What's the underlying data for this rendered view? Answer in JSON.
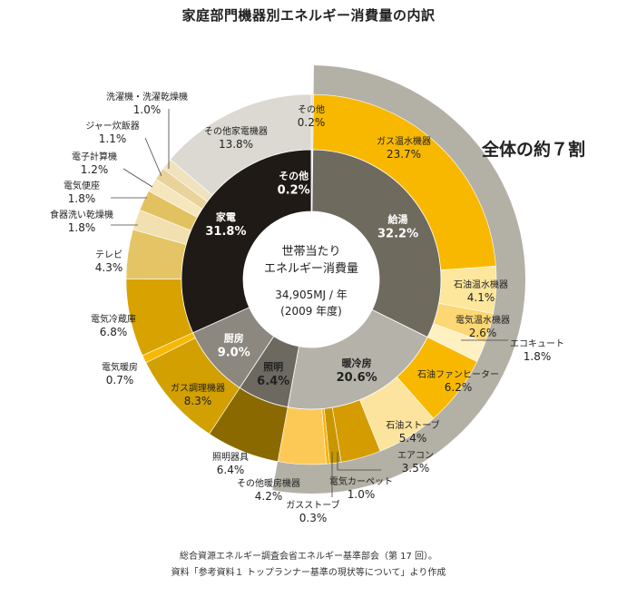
{
  "title": "家庭部門機器別エネルギー消費量の内訳",
  "center": {
    "line1": "世帯当たり",
    "line2": "エネルギー消費量",
    "line3": "34,905MJ / 年",
    "line4": "(2009 年度)"
  },
  "callout": "全体の約７割",
  "source": {
    "line1": "総合資源エネルギー調査会省エネルギー基準部会（第 17 回）。",
    "line2": "資料「参考資料１ トップランナー基準の現状等について」より作成"
  },
  "colors": {
    "kyuto": "#6f6a5e",
    "kaden": "#1f1a15",
    "danreibo": "#b5b2a9",
    "shomei": "#6d6860",
    "chubo": "#8c8880",
    "other": "#dbd9d2",
    "band": "#b3b0a5",
    "gold": "#f8b800"
  },
  "chart_data": {
    "type": "pie",
    "total_label": "34,905MJ / 年",
    "inner": [
      {
        "name": "その他",
        "value": 0.2,
        "label": "その他",
        "pct": "0.2%"
      },
      {
        "name": "給湯",
        "value": 32.2,
        "label": "給湯",
        "pct": "32.2%"
      },
      {
        "name": "暖冷房",
        "value": 20.6,
        "label": "暖冷房",
        "pct": "20.6%"
      },
      {
        "name": "照明",
        "value": 6.4,
        "label": "照明",
        "pct": "6.4%"
      },
      {
        "name": "厨房",
        "value": 9.0,
        "label": "厨房",
        "pct": "9.0%"
      },
      {
        "name": "家電",
        "value": 31.8,
        "label": "家電",
        "pct": "31.8%"
      }
    ],
    "outer": [
      {
        "name": "その他",
        "value": 0.2,
        "label": "その他",
        "pct": "0.2%"
      },
      {
        "name": "ガス温水機器",
        "value": 23.7,
        "label": "ガス温水機器",
        "pct": "23.7%"
      },
      {
        "name": "石油温水機器",
        "value": 4.1,
        "label": "石油温水機器",
        "pct": "4.1%"
      },
      {
        "name": "電気温水機器",
        "value": 2.6,
        "label": "電気温水機器",
        "pct": "2.6%"
      },
      {
        "name": "エコキュート",
        "value": 1.8,
        "label": "エコキュート",
        "pct": "1.8%"
      },
      {
        "name": "石油ファンヒーター",
        "value": 6.2,
        "label": "石油ファンヒーター",
        "pct": "6.2%"
      },
      {
        "name": "石油ストーブ",
        "value": 5.4,
        "label": "石油ストーブ",
        "pct": "5.4%"
      },
      {
        "name": "エアコン",
        "value": 3.5,
        "label": "エアコン",
        "pct": "3.5%"
      },
      {
        "name": "電気カーペット",
        "value": 1.0,
        "label": "電気カーペット",
        "pct": "1.0%"
      },
      {
        "name": "ガスストーブ",
        "value": 0.3,
        "label": "ガスストーブ",
        "pct": "0.3%"
      },
      {
        "name": "その他暖房機器",
        "value": 4.2,
        "label": "その他暖房機器",
        "pct": "4.2%"
      },
      {
        "name": "照明器具",
        "value": 6.4,
        "label": "照明器具",
        "pct": "6.4%"
      },
      {
        "name": "ガス調理機器",
        "value": 8.3,
        "label": "ガス調理機器",
        "pct": "8.3%"
      },
      {
        "name": "電気暖房",
        "value": 0.7,
        "label": "電気暖房",
        "pct": "0.7%"
      },
      {
        "name": "電気冷蔵庫",
        "value": 6.8,
        "label": "電気冷蔵庫",
        "pct": "6.8%"
      },
      {
        "name": "テレビ",
        "value": 4.3,
        "label": "テレビ",
        "pct": "4.3%"
      },
      {
        "name": "食器洗い乾燥機",
        "value": 1.8,
        "label": "食器洗い乾燥機",
        "pct": "1.8%"
      },
      {
        "name": "電気便座",
        "value": 1.8,
        "label": "電気便座",
        "pct": "1.8%"
      },
      {
        "name": "電子計算機",
        "value": 1.2,
        "label": "電子計算機",
        "pct": "1.2%"
      },
      {
        "name": "ジャー炊飯器",
        "value": 1.1,
        "label": "ジャー炊飯器",
        "pct": "1.1%"
      },
      {
        "name": "洗濯機・洗濯乾燥機",
        "value": 1.0,
        "label": "洗濯機・洗濯乾燥機",
        "pct": "1.0%"
      },
      {
        "name": "その他家電機器",
        "value": 13.8,
        "label": "その他家電機器",
        "pct": "13.8%"
      }
    ]
  }
}
